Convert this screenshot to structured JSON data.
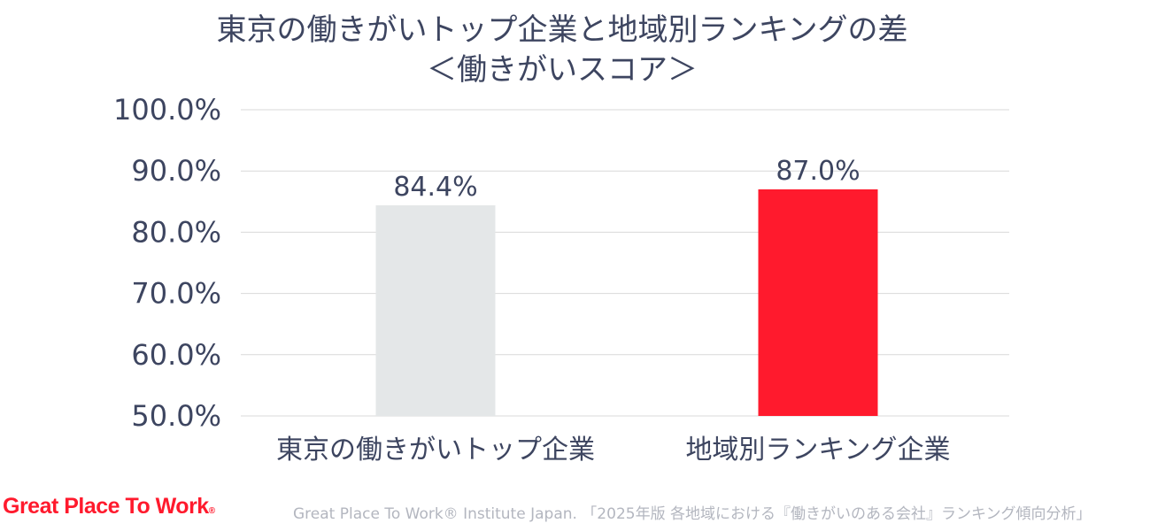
{
  "title": {
    "line1": "東京の働きがいトップ企業と地域別ランキングの差",
    "line2": "＜働きがいスコア＞"
  },
  "colors": {
    "bar_tokyo": "#e4e7e8",
    "bar_regional": "#ff1a2d",
    "text": "#3d4560",
    "grid": "#d9d9d9",
    "brand": "#ff1a2d"
  },
  "chart_data": {
    "type": "bar",
    "title": "東京の働きがいトップ企業と地域別ランキングの差 ＜働きがいスコア＞",
    "categories": [
      "東京の働きがいトップ企業",
      "地域別ランキング企業"
    ],
    "values": [
      84.4,
      87.0
    ],
    "data_labels": [
      "84.4%",
      "87.0%"
    ],
    "yticks": [
      "50.0%",
      "60.0%",
      "70.0%",
      "80.0%",
      "90.0%",
      "100.0%"
    ],
    "ytick_values": [
      50,
      60,
      70,
      80,
      90,
      100
    ],
    "ylim": [
      50,
      100
    ],
    "xlabel": "",
    "ylabel": "",
    "grid": true,
    "legend": "none"
  },
  "footer": {
    "logo": "Great Place To Work",
    "logo_mark": "®",
    "source": "Great Place To Work® Institute Japan. 「2025年版 各地域における『働きがいのある会社』ランキング傾向分析」"
  }
}
